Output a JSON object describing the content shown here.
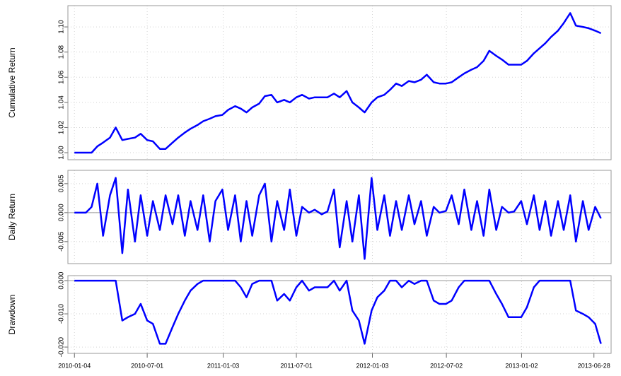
{
  "chart_data": [
    {
      "type": "line",
      "ylabel": "Cumulative Return",
      "color": "#0000ff",
      "x": [
        "2010-01-04",
        "2010-01-15",
        "2010-02-01",
        "2010-02-15",
        "2010-03-01",
        "2010-03-15",
        "2010-04-01",
        "2010-04-15",
        "2010-05-01",
        "2010-05-15",
        "2010-06-01",
        "2010-06-15",
        "2010-07-01",
        "2010-07-15",
        "2010-08-01",
        "2010-08-15",
        "2010-09-01",
        "2010-09-15",
        "2010-10-01",
        "2010-10-15",
        "2010-11-01",
        "2010-11-15",
        "2010-12-01",
        "2010-12-15",
        "2011-01-01",
        "2011-01-15",
        "2011-02-01",
        "2011-02-15",
        "2011-03-01",
        "2011-03-15",
        "2011-04-01",
        "2011-04-15",
        "2011-05-01",
        "2011-05-15",
        "2011-06-01",
        "2011-06-15",
        "2011-07-01",
        "2011-07-15",
        "2011-08-01",
        "2011-08-15",
        "2011-09-01",
        "2011-09-15",
        "2011-10-01",
        "2011-10-15",
        "2011-11-01",
        "2011-11-15",
        "2011-12-01",
        "2011-12-15",
        "2012-01-01",
        "2012-01-15",
        "2012-02-01",
        "2012-02-15",
        "2012-03-01",
        "2012-03-15",
        "2012-04-01",
        "2012-04-15",
        "2012-05-01",
        "2012-05-15",
        "2012-06-01",
        "2012-06-15",
        "2012-07-01",
        "2012-07-15",
        "2012-08-01",
        "2012-08-15",
        "2012-09-01",
        "2012-09-15",
        "2012-10-01",
        "2012-10-15",
        "2012-11-01",
        "2012-11-15",
        "2012-12-01",
        "2012-12-15",
        "2013-01-01",
        "2013-01-15",
        "2013-02-01",
        "2013-02-15",
        "2013-03-01",
        "2013-03-15",
        "2013-04-01",
        "2013-04-15",
        "2013-05-01",
        "2013-05-15",
        "2013-06-01",
        "2013-06-15",
        "2013-07-01",
        "2013-07-15"
      ],
      "values": [
        1.0,
        1.0,
        1.0,
        1.0,
        1.005,
        1.008,
        1.012,
        1.02,
        1.01,
        1.011,
        1.012,
        1.015,
        1.01,
        1.009,
        1.003,
        1.003,
        1.008,
        1.012,
        1.016,
        1.019,
        1.022,
        1.025,
        1.027,
        1.029,
        1.03,
        1.034,
        1.037,
        1.035,
        1.032,
        1.036,
        1.039,
        1.045,
        1.046,
        1.04,
        1.042,
        1.04,
        1.044,
        1.046,
        1.043,
        1.044,
        1.044,
        1.044,
        1.047,
        1.044,
        1.049,
        1.04,
        1.036,
        1.032,
        1.04,
        1.044,
        1.046,
        1.05,
        1.055,
        1.053,
        1.057,
        1.056,
        1.058,
        1.062,
        1.056,
        1.055,
        1.055,
        1.056,
        1.06,
        1.063,
        1.066,
        1.068,
        1.073,
        1.081,
        1.077,
        1.074,
        1.07,
        1.07,
        1.07,
        1.073,
        1.079,
        1.083,
        1.087,
        1.092,
        1.097,
        1.103,
        1.111,
        1.101,
        1.1,
        1.099,
        1.097,
        1.095
      ],
      "ylim": [
        0.9944,
        1.1169
      ],
      "yticks": [
        {
          "value": 1.0,
          "label": "1.00"
        },
        1.02,
        1.04,
        1.06,
        1.08,
        {
          "value": 1.1,
          "label": "1.10"
        }
      ],
      "xlim": [
        "2009-12-19",
        "2013-08-09"
      ],
      "grid": true
    },
    {
      "type": "line",
      "ylabel": "Daily Return",
      "color": "#0000ff",
      "x": [
        "2010-01-04",
        "2010-01-15",
        "2010-02-01",
        "2010-02-15",
        "2010-03-01",
        "2010-03-15",
        "2010-04-01",
        "2010-04-15",
        "2010-05-01",
        "2010-05-15",
        "2010-06-01",
        "2010-06-15",
        "2010-07-01",
        "2010-07-15",
        "2010-08-01",
        "2010-08-15",
        "2010-09-01",
        "2010-09-15",
        "2010-10-01",
        "2010-10-15",
        "2010-11-01",
        "2010-11-15",
        "2010-12-01",
        "2010-12-15",
        "2011-01-01",
        "2011-01-15",
        "2011-02-01",
        "2011-02-15",
        "2011-03-01",
        "2011-03-15",
        "2011-04-01",
        "2011-04-15",
        "2011-05-01",
        "2011-05-15",
        "2011-06-01",
        "2011-06-15",
        "2011-07-01",
        "2011-07-15",
        "2011-08-01",
        "2011-08-15",
        "2011-09-01",
        "2011-09-15",
        "2011-10-01",
        "2011-10-15",
        "2011-11-01",
        "2011-11-15",
        "2011-12-01",
        "2011-12-15",
        "2012-01-01",
        "2012-01-15",
        "2012-02-01",
        "2012-02-15",
        "2012-03-01",
        "2012-03-15",
        "2012-04-01",
        "2012-04-15",
        "2012-05-01",
        "2012-05-15",
        "2012-06-01",
        "2012-06-15",
        "2012-07-01",
        "2012-07-15",
        "2012-08-01",
        "2012-08-15",
        "2012-09-01",
        "2012-09-15",
        "2012-10-01",
        "2012-10-15",
        "2012-11-01",
        "2012-11-15",
        "2012-12-01",
        "2012-12-15",
        "2013-01-01",
        "2013-01-15",
        "2013-02-01",
        "2013-02-15",
        "2013-03-01",
        "2013-03-15",
        "2013-04-01",
        "2013-04-15",
        "2013-05-01",
        "2013-05-15",
        "2013-06-01",
        "2013-06-15",
        "2013-07-01",
        "2013-07-15"
      ],
      "values": [
        0,
        0,
        0,
        0.001,
        0.005,
        -0.004,
        0.003,
        0.006,
        -0.007,
        0.004,
        -0.005,
        0.003,
        -0.004,
        0.002,
        -0.003,
        0.003,
        -0.002,
        0.003,
        -0.004,
        0.002,
        -0.003,
        0.003,
        -0.005,
        0.002,
        0.004,
        -0.003,
        0.003,
        -0.005,
        0.002,
        -0.004,
        0.003,
        0.005,
        -0.005,
        0.002,
        -0.003,
        0.004,
        -0.004,
        0.001,
        0,
        0.0005,
        -0.0003,
        0.0002,
        0.004,
        -0.006,
        0.002,
        -0.005,
        0.003,
        -0.008,
        0.006,
        -0.003,
        0.003,
        -0.004,
        0.002,
        -0.003,
        0.003,
        -0.002,
        0.002,
        -0.004,
        0.001,
        0,
        0.0003,
        0.003,
        -0.002,
        0.004,
        -0.003,
        0.002,
        -0.004,
        0.004,
        -0.003,
        0.001,
        0,
        0.0002,
        0.002,
        -0.002,
        0.003,
        -0.003,
        0.002,
        -0.004,
        0.002,
        -0.003,
        0.003,
        -0.005,
        0.002,
        -0.003,
        0.001,
        -0.001
      ],
      "ylim": [
        -0.0088,
        0.0073
      ],
      "yticks": [
        -0.005,
        {
          "value": 0,
          "label": "0.000"
        },
        0.005
      ],
      "xlim": [
        "2009-12-19",
        "2013-08-09"
      ],
      "grid": true
    },
    {
      "type": "line",
      "ylabel": "Drawdown",
      "color": "#0000ff",
      "x": [
        "2010-01-04",
        "2010-01-15",
        "2010-02-01",
        "2010-02-15",
        "2010-03-01",
        "2010-03-15",
        "2010-04-01",
        "2010-04-15",
        "2010-05-01",
        "2010-05-15",
        "2010-06-01",
        "2010-06-15",
        "2010-07-01",
        "2010-07-15",
        "2010-08-01",
        "2010-08-15",
        "2010-09-01",
        "2010-09-15",
        "2010-10-01",
        "2010-10-15",
        "2010-11-01",
        "2010-11-15",
        "2010-12-01",
        "2010-12-15",
        "2011-01-01",
        "2011-01-15",
        "2011-02-01",
        "2011-02-15",
        "2011-03-01",
        "2011-03-15",
        "2011-04-01",
        "2011-04-15",
        "2011-05-01",
        "2011-05-15",
        "2011-06-01",
        "2011-06-15",
        "2011-07-01",
        "2011-07-15",
        "2011-08-01",
        "2011-08-15",
        "2011-09-01",
        "2011-09-15",
        "2011-10-01",
        "2011-10-15",
        "2011-11-01",
        "2011-11-15",
        "2011-12-01",
        "2011-12-15",
        "2012-01-01",
        "2012-01-15",
        "2012-02-01",
        "2012-02-15",
        "2012-03-01",
        "2012-03-15",
        "2012-04-01",
        "2012-04-15",
        "2012-05-01",
        "2012-05-15",
        "2012-06-01",
        "2012-06-15",
        "2012-07-01",
        "2012-07-15",
        "2012-08-01",
        "2012-08-15",
        "2012-09-01",
        "2012-09-15",
        "2012-10-01",
        "2012-10-15",
        "2012-11-01",
        "2012-11-15",
        "2012-12-01",
        "2012-12-15",
        "2013-01-01",
        "2013-01-15",
        "2013-02-01",
        "2013-02-15",
        "2013-03-01",
        "2013-03-15",
        "2013-04-01",
        "2013-04-15",
        "2013-05-01",
        "2013-05-15",
        "2013-06-01",
        "2013-06-15",
        "2013-07-01",
        "2013-07-15"
      ],
      "values": [
        0,
        0,
        0,
        0,
        0,
        0,
        0,
        0,
        -0.012,
        -0.011,
        -0.01,
        -0.007,
        -0.012,
        -0.013,
        -0.019,
        -0.019,
        -0.014,
        -0.01,
        -0.006,
        -0.003,
        -0.001,
        0,
        0,
        0,
        0,
        0,
        0,
        -0.002,
        -0.005,
        -0.001,
        0,
        0,
        0,
        -0.006,
        -0.004,
        -0.006,
        -0.002,
        0,
        -0.003,
        -0.002,
        -0.002,
        -0.002,
        0,
        -0.003,
        0,
        -0.009,
        -0.012,
        -0.019,
        -0.009,
        -0.005,
        -0.003,
        0,
        0,
        -0.002,
        0,
        -0.001,
        0,
        0,
        -0.006,
        -0.007,
        -0.007,
        -0.006,
        -0.002,
        0,
        0,
        0,
        0,
        0,
        -0.004,
        -0.007,
        -0.011,
        -0.011,
        -0.011,
        -0.008,
        -0.002,
        0,
        0,
        0,
        0,
        0,
        0,
        -0.009,
        -0.01,
        -0.011,
        -0.013,
        -0.019
      ],
      "ylim": [
        -0.0219,
        0.0015
      ],
      "yticks": [
        {
          "value": -0.02,
          "label": "-0.020"
        },
        {
          "value": -0.01,
          "label": "-0.010"
        },
        {
          "value": 0,
          "label": "0.000"
        }
      ],
      "xlim": [
        "2009-12-19",
        "2013-08-09"
      ],
      "xticks": [
        "2010-01-04",
        "2010-07-01",
        "2011-01-03",
        "2011-07-01",
        "2012-01-03",
        "2012-07-02",
        "2013-01-02",
        "2013-06-28"
      ],
      "grid": true
    }
  ]
}
